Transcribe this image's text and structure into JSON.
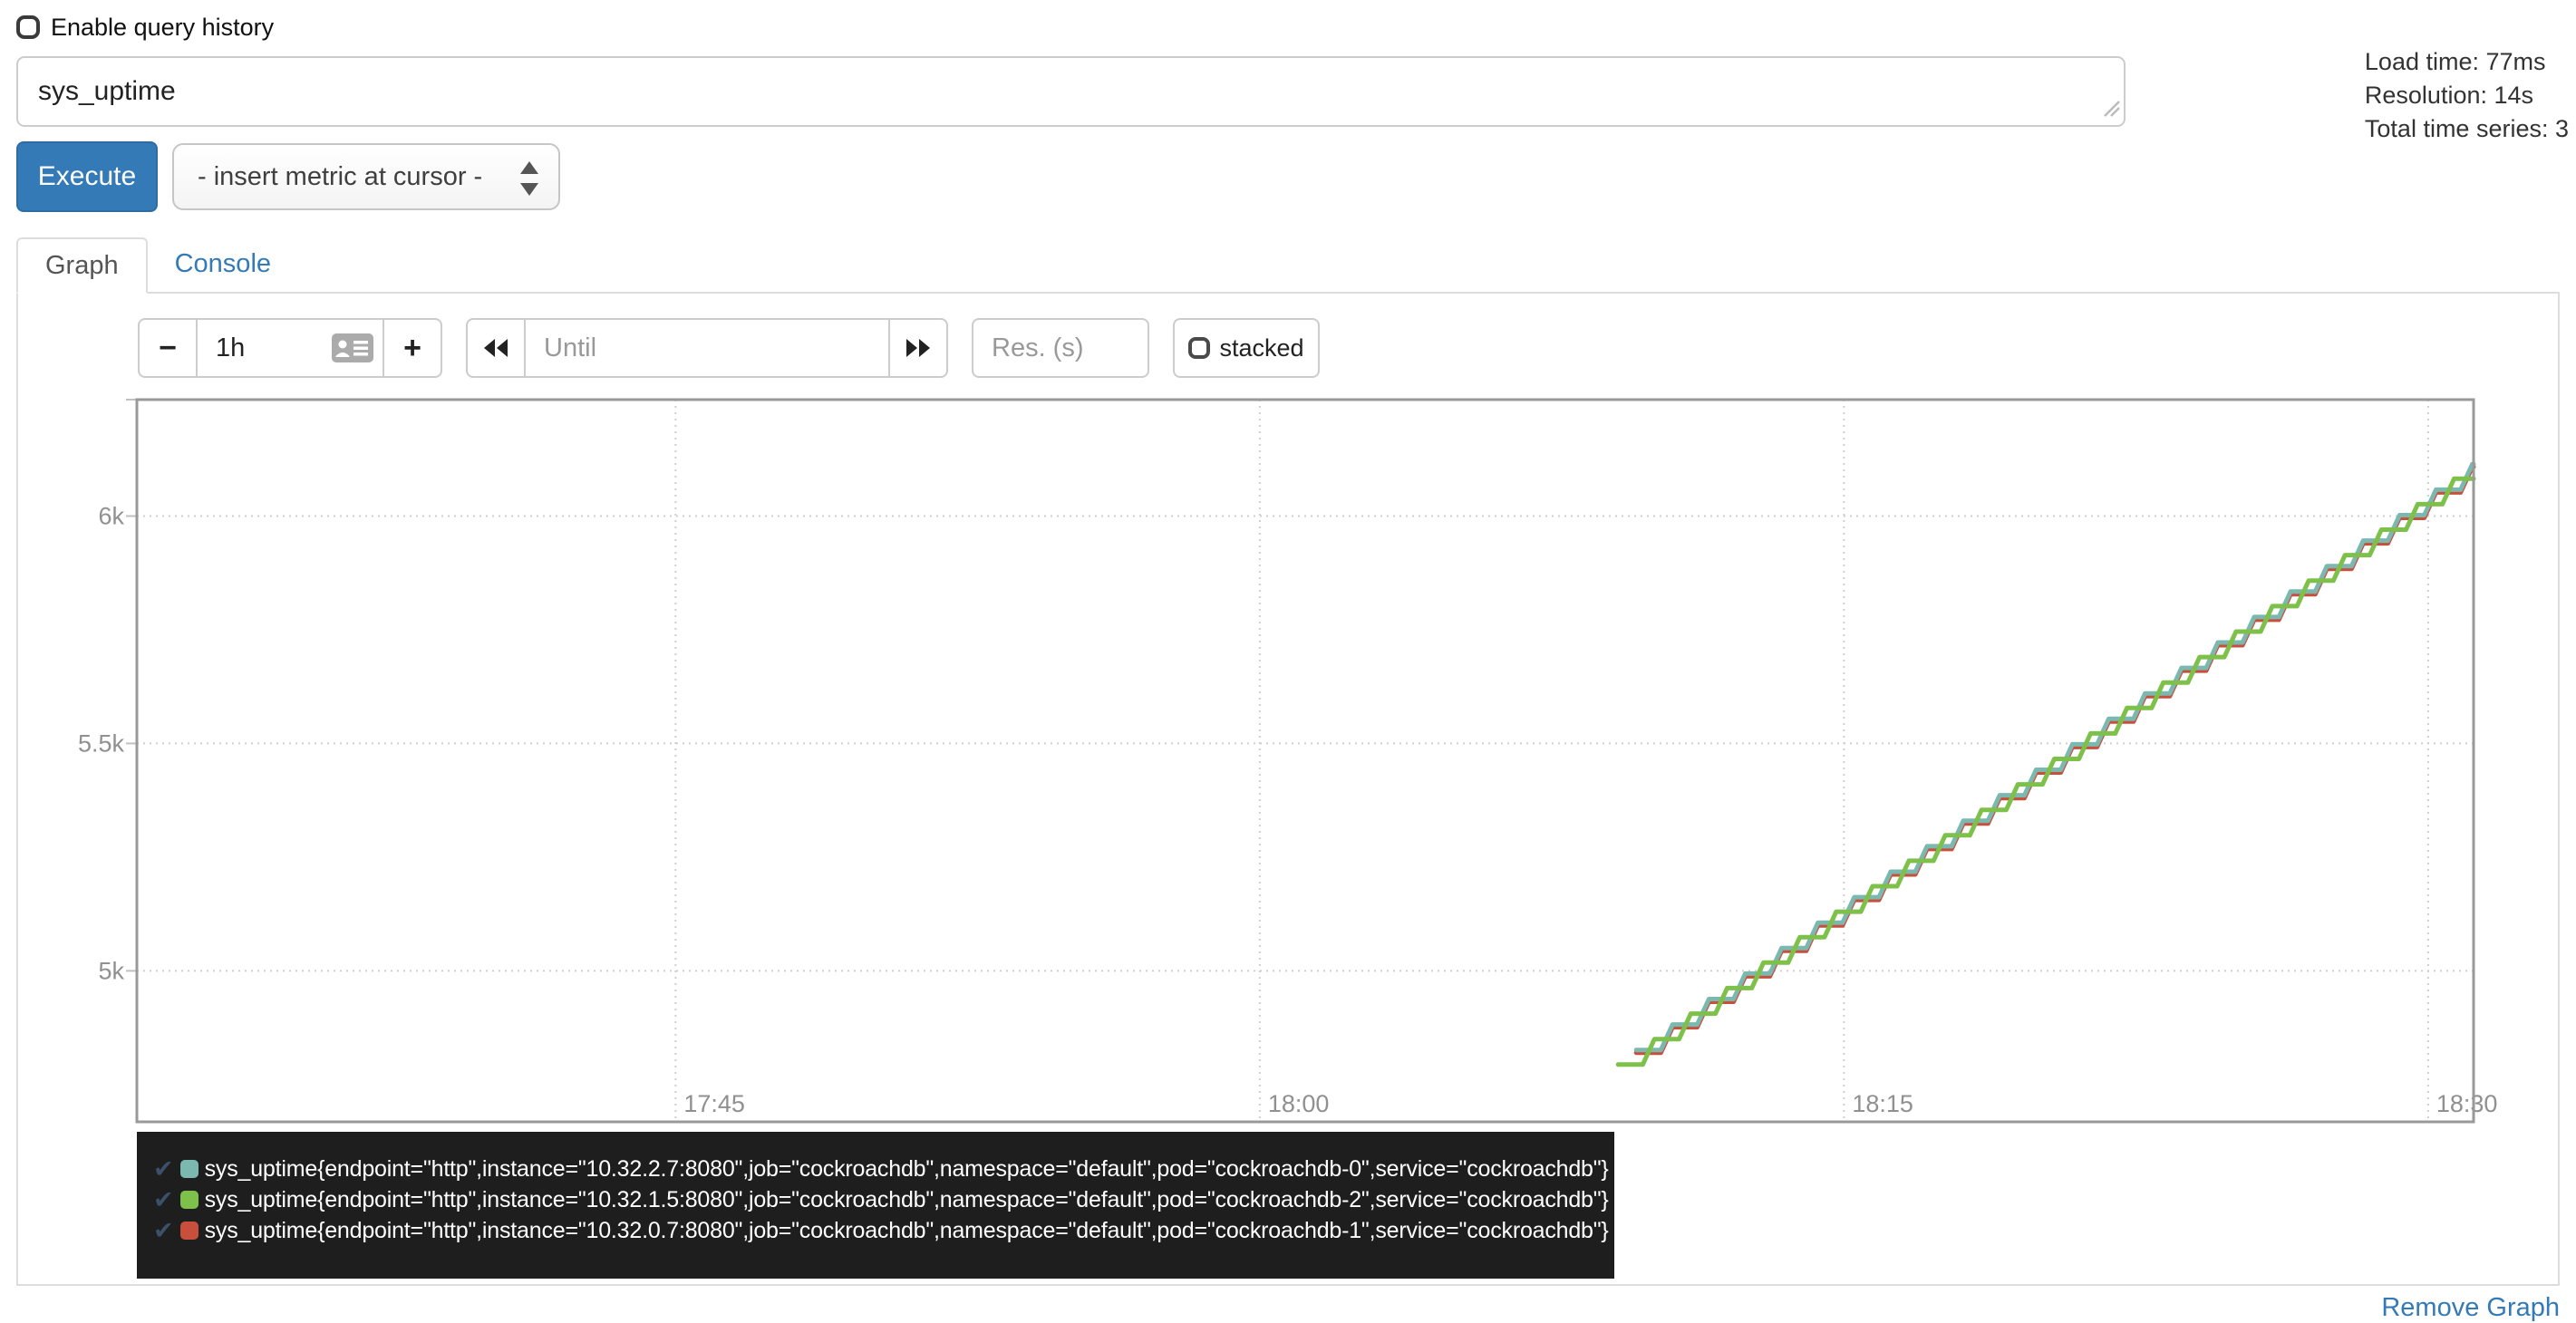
{
  "header": {
    "history_checkbox_label": "Enable query history",
    "query_value": "sys_uptime",
    "stats": {
      "load_time": "Load time: 77ms",
      "resolution": "Resolution: 14s",
      "total_series": "Total time series: 3"
    },
    "execute_label": "Execute",
    "metric_dropdown_value": "- insert metric at cursor -"
  },
  "tabs": {
    "graph": "Graph",
    "console": "Console"
  },
  "graph_controls": {
    "shrink_range_label": "−",
    "range_value": "1h",
    "grow_range_label": "+",
    "until_placeholder": "Until",
    "resolution_placeholder": "Res. (s)",
    "stacked_label": "stacked"
  },
  "icons": {
    "range_picker": "datalist-picker-icon",
    "rewind": "rewind-icon",
    "fast_forward": "fast-forward-icon",
    "resize_grip": "resize-grip-icon",
    "select_arrows": "select-up-down-icon",
    "legend_check_glyph": "✔"
  },
  "chart_data": {
    "type": "line",
    "title": "",
    "xlabel": "",
    "ylabel": "",
    "x_axis": {
      "start_time": "17:31:10",
      "end_time": "18:31:10",
      "span_seconds": 3600,
      "ticks": [
        {
          "label": "17:45",
          "offset_s": 830
        },
        {
          "label": "18:00",
          "offset_s": 1730
        },
        {
          "label": "18:15",
          "offset_s": 2630
        },
        {
          "label": "18:30",
          "offset_s": 3530
        }
      ]
    },
    "y_axis": {
      "min": 4668,
      "max": 6256,
      "ticks": [
        {
          "label": "5k",
          "value": 5000
        },
        {
          "label": "5.5k",
          "value": 5500
        },
        {
          "label": "6k",
          "value": 6000
        }
      ]
    },
    "grid": {
      "style": "dotted",
      "border": true
    },
    "legend_position": "below",
    "series": [
      {
        "name": "pod cockroachdb-0 (10.32.2.7:8080)",
        "color": "#7ab8b0",
        "start_offset_s": 2310,
        "start_value": 4826,
        "end_value": 6116,
        "slope_value_per_s": 1,
        "step_period_s": 56,
        "step_flat_s": 38
      },
      {
        "name": "pod cockroachdb-2 (10.32.1.5:8080)",
        "color": "#7dc04a",
        "start_offset_s": 2282,
        "start_value": 4794,
        "end_value": 6112,
        "slope_value_per_s": 1,
        "step_period_s": 56,
        "step_flat_s": 38
      },
      {
        "name": "pod cockroachdb-1 (10.32.0.7:8080)",
        "color": "#c84f3c",
        "start_offset_s": 2310,
        "start_value": 4820,
        "end_value": 6110,
        "slope_value_per_s": 1,
        "step_period_s": 56,
        "step_flat_s": 38
      }
    ],
    "draw_order": [
      2,
      0,
      1
    ]
  },
  "legend": {
    "items": [
      {
        "checked": true,
        "color": "#7ab8b0",
        "label": "sys_uptime{endpoint=\"http\",instance=\"10.32.2.7:8080\",job=\"cockroachdb\",namespace=\"default\",pod=\"cockroachdb-0\",service=\"cockroachdb\"}"
      },
      {
        "checked": true,
        "color": "#7dc04a",
        "label": "sys_uptime{endpoint=\"http\",instance=\"10.32.1.5:8080\",job=\"cockroachdb\",namespace=\"default\",pod=\"cockroachdb-2\",service=\"cockroachdb\"}"
      },
      {
        "checked": true,
        "color": "#c84f3c",
        "label": "sys_uptime{endpoint=\"http\",instance=\"10.32.0.7:8080\",job=\"cockroachdb\",namespace=\"default\",pod=\"cockroachdb-1\",service=\"cockroachdb\"}"
      }
    ]
  },
  "footer": {
    "remove_graph_label": "Remove Graph"
  },
  "colors": {
    "accent_blue": "#337ab7",
    "series_teal": "#7ab8b0",
    "series_green": "#7dc04a",
    "series_red": "#c84f3c",
    "legend_bg": "#1e1e1e",
    "axis_label_gray": "#909090",
    "chart_border_gray": "#999999"
  }
}
